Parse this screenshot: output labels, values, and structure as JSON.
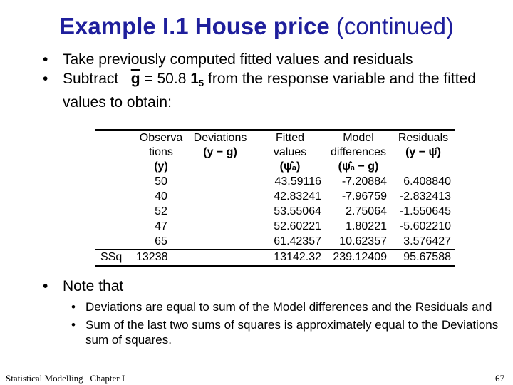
{
  "title": {
    "bold": "Example I.1 House price",
    "normal": "(continued)"
  },
  "bullets": {
    "b1": "Take previously computed fitted values and residuals",
    "b2_prefix": "Subtract",
    "b2_g": "g",
    "b2_eq": "= 50.8",
    "b2_one": "1",
    "b2_sub": "5",
    "b2_suffix": "from the response variable and the fitted values to obtain:"
  },
  "table": {
    "headers": {
      "c1a": "Observa",
      "c1b": "tions",
      "c1c": "(y)",
      "c2a": "Deviations",
      "c2b": "(y − g)",
      "c3a": "Fitted",
      "c3b": "values",
      "c3c": "(ψ̂ₐ)",
      "c4a": "Model",
      "c4b": "differences",
      "c4c": "(ψ̂ₐ − g)",
      "c5a": "Residuals",
      "c5b": "(y − ψ̂)"
    },
    "rows": [
      {
        "obs": "50",
        "fitted": "43.59116",
        "model": "-7.20884",
        "resid": "6.408840"
      },
      {
        "obs": "40",
        "fitted": "42.83241",
        "model": "-7.96759",
        "resid": "-2.832413"
      },
      {
        "obs": "52",
        "fitted": "53.55064",
        "model": "2.75064",
        "resid": "-1.550645"
      },
      {
        "obs": "47",
        "fitted": "52.60221",
        "model": "1.80221",
        "resid": "-5.602210"
      },
      {
        "obs": "65",
        "fitted": "61.42357",
        "model": "10.62357",
        "resid": "3.576427"
      }
    ],
    "ssq": {
      "label": "SSq",
      "dev": "13238",
      "fitted": "13142.32",
      "model": "239.12409",
      "resid": "95.67588"
    }
  },
  "note": "Note that",
  "sub_bullets": [
    "Deviations are equal to sum of the Model differences and the Residuals and",
    "Sum of the last two sums of squares is approximately equal to the Deviations sum of squares."
  ],
  "footer": {
    "left": "Statistical Modelling   Chapter I",
    "page": "67"
  },
  "colors": {
    "title": "#1f1f9c"
  }
}
